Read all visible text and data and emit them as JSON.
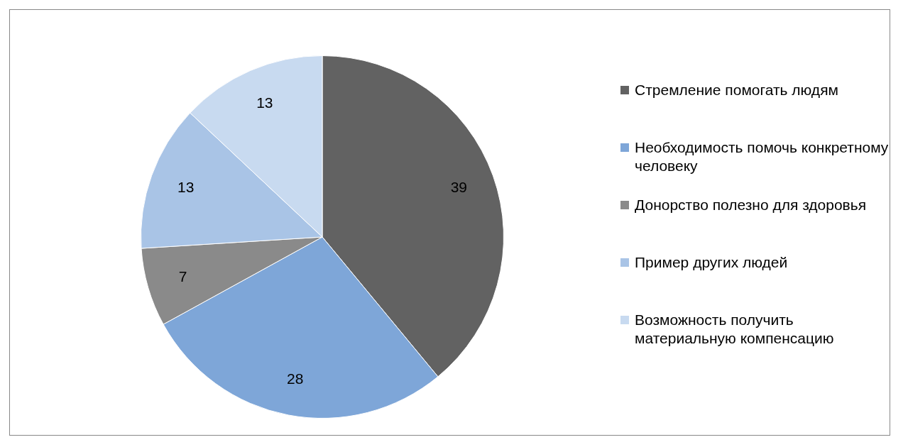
{
  "chart_data": {
    "type": "pie",
    "categories": [
      "Стремление помогать людям",
      "Необходимость помочь конкретному человеку",
      "Донорство полезно для здоровья",
      "Пример других людей",
      "Возможность получить материальную компенсацию"
    ],
    "values": [
      39,
      28,
      7,
      13,
      13
    ],
    "colors": [
      "#626262",
      "#7ea6d8",
      "#8a8a8a",
      "#a9c4e6",
      "#c8daf0"
    ],
    "data_labels": true,
    "legend": "right"
  }
}
